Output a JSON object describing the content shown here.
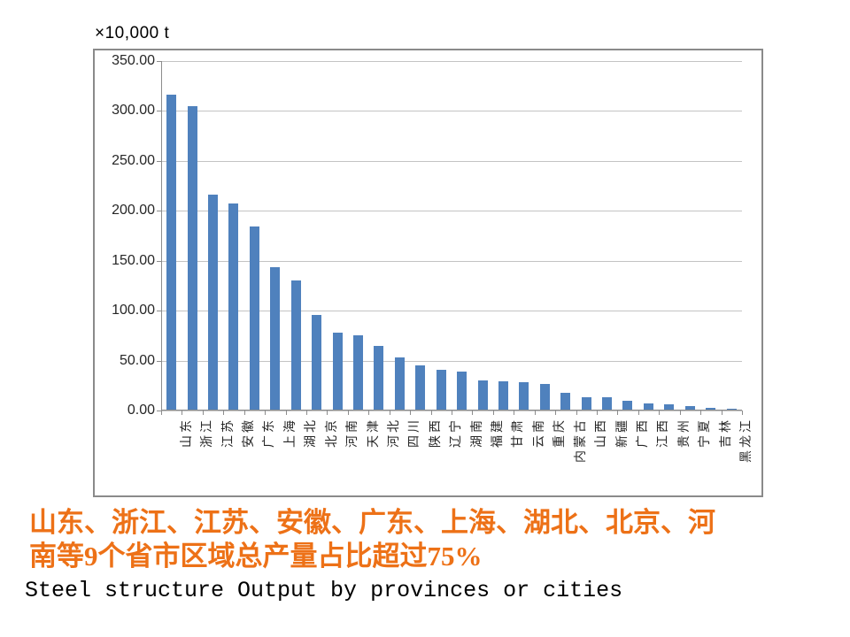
{
  "chart_data": {
    "type": "bar",
    "title": "",
    "unit_label": "×10,000 t",
    "categories": [
      "山东",
      "浙江",
      "江苏",
      "安徽",
      "广东",
      "上海",
      "湖北",
      "北京",
      "河南",
      "天津",
      "河北",
      "四川",
      "陕西",
      "辽宁",
      "湖南",
      "福建",
      "甘肃",
      "云南",
      "重庆",
      "内蒙古",
      "山西",
      "新疆",
      "广西",
      "江西",
      "贵州",
      "宁夏",
      "吉林",
      "黑龙江"
    ],
    "values": [
      316,
      305,
      216,
      207,
      184,
      144,
      130,
      96,
      78,
      75,
      65,
      53,
      45,
      41,
      39,
      30,
      29,
      28,
      27,
      18,
      13.5,
      13.5,
      9.5,
      7,
      6,
      4.5,
      2.5,
      1.5
    ],
    "xlabel": "",
    "ylabel": "",
    "ylim": [
      0,
      350
    ],
    "ytick_step": 50,
    "ytick_labels": [
      "350.00",
      "300.00",
      "250.00",
      "200.00",
      "150.00",
      "100.00",
      "50.00",
      "0.00"
    ],
    "grid": true,
    "legend": "none",
    "bar_color": "#4F81BD"
  },
  "caption": {
    "lines": [
      "山东、浙江、江苏、安徽、广东、上海、湖北、北京、河",
      "南等9个省市区域总产量占比超过75%"
    ],
    "color": "#ED7117"
  },
  "footer_title": "Steel structure Output by provinces or cities"
}
